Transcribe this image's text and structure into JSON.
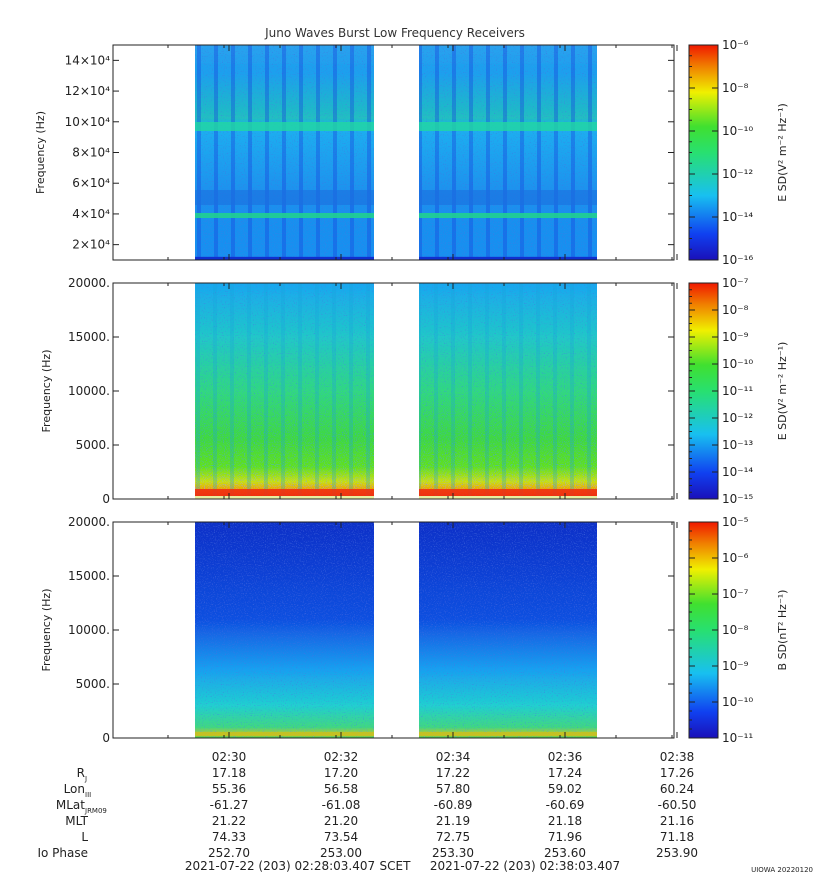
{
  "title": "Juno Waves Burst Low Frequency Receivers",
  "credit": "UIOWA 20220120",
  "time_axis": {
    "tick_labels": [
      "02:30",
      "02:32",
      "02:34",
      "02:36",
      "02:38"
    ],
    "start_label": "2021-07-22 (203) 02:28:03.407",
    "frame_label": "SCET",
    "end_label": "2021-07-22 (203) 02:38:03.407"
  },
  "ephemeris": {
    "rows": [
      {
        "name": "R",
        "sub": "J",
        "values": [
          "17.18",
          "17.20",
          "17.22",
          "17.24",
          "17.26"
        ]
      },
      {
        "name": "Lon",
        "sub": "III",
        "values": [
          "55.36",
          "56.58",
          "57.80",
          "59.02",
          "60.24"
        ]
      },
      {
        "name": "MLat",
        "sub": "JRM09",
        "values": [
          "-61.27",
          "-61.08",
          "-60.89",
          "-60.69",
          "-60.50"
        ]
      },
      {
        "name": "MLT",
        "sub": "",
        "values": [
          "21.22",
          "21.20",
          "21.19",
          "21.18",
          "21.16"
        ]
      },
      {
        "name": "L",
        "sub": "",
        "values": [
          "74.33",
          "73.54",
          "72.75",
          "71.96",
          "71.18"
        ]
      },
      {
        "name": "Io Phase",
        "sub": "",
        "values": [
          "252.70",
          "253.00",
          "253.30",
          "253.60",
          "253.90"
        ]
      }
    ]
  },
  "colors": {
    "background_low": "#1030c8",
    "mid": "#1aa8f0",
    "green": "#30d830",
    "yellow": "#f0e000",
    "red": "#f02000"
  },
  "panels": [
    {
      "ylabel": "Frequency (Hz)",
      "ytick_labels": [
        "2×10⁴",
        "4×10⁴",
        "6×10⁴",
        "8×10⁴",
        "10×10⁴",
        "12×10⁴",
        "14×10⁴"
      ],
      "ytick_values": [
        20000,
        40000,
        60000,
        80000,
        100000,
        120000,
        140000
      ],
      "ylim": [
        10000,
        150000
      ],
      "cbar_label": "E SD(V² m⁻² Hz⁻¹)",
      "cbar_tick_labels": [
        "10⁻⁶",
        "10⁻⁸",
        "10⁻¹⁰",
        "10⁻¹²",
        "10⁻¹⁴",
        "10⁻¹⁶"
      ]
    },
    {
      "ylabel": "Frequency (Hz)",
      "ytick_labels": [
        "0",
        "5000.",
        "10000.",
        "15000.",
        "20000."
      ],
      "ytick_values": [
        0,
        5000,
        10000,
        15000,
        20000
      ],
      "ylim": [
        0,
        20000
      ],
      "cbar_label": "E SD(V² m⁻² Hz⁻¹)",
      "cbar_tick_labels": [
        "10⁻⁷",
        "10⁻⁸",
        "10⁻⁹",
        "10⁻¹⁰",
        "10⁻¹¹",
        "10⁻¹²",
        "10⁻¹³",
        "10⁻¹⁴",
        "10⁻¹⁵"
      ]
    },
    {
      "ylabel": "Frequency (Hz)",
      "ytick_labels": [
        "0",
        "5000.",
        "10000.",
        "15000.",
        "20000."
      ],
      "ytick_values": [
        0,
        5000,
        10000,
        15000,
        20000
      ],
      "ylim": [
        0,
        20000
      ],
      "cbar_label": "B SD(nT² Hz⁻¹)",
      "cbar_tick_labels": [
        "10⁻⁵",
        "10⁻⁶",
        "10⁻⁷",
        "10⁻⁸",
        "10⁻⁹",
        "10⁻¹⁰",
        "10⁻¹¹"
      ]
    }
  ],
  "chart_data": {
    "type": "heatmap",
    "title": "Juno Waves Burst Low Frequency Receivers",
    "xlabel": "SCET",
    "x_range": [
      "02:28:03.407",
      "02:38:03.407"
    ],
    "data_intervals": [
      [
        "02:29:25",
        "02:32:35"
      ],
      [
        "02:33:25",
        "02:36:35"
      ]
    ],
    "panels": [
      {
        "ylabel": "Frequency (Hz)",
        "ylim": [
          10000,
          150000
        ],
        "zlabel": "E SD(V² m⁻² Hz⁻¹)",
        "zlim": [
          "1e-16",
          "1e-6"
        ]
      },
      {
        "ylabel": "Frequency (Hz)",
        "ylim": [
          0,
          20000
        ],
        "zlabel": "E SD(V² m⁻² Hz⁻¹)",
        "zlim": [
          "1e-15",
          "1e-7"
        ]
      },
      {
        "ylabel": "Frequency (Hz)",
        "ylim": [
          0,
          20000
        ],
        "zlabel": "B SD(nT² Hz⁻¹)",
        "zlim": [
          "1e-11",
          "1e-5"
        ]
      }
    ]
  }
}
